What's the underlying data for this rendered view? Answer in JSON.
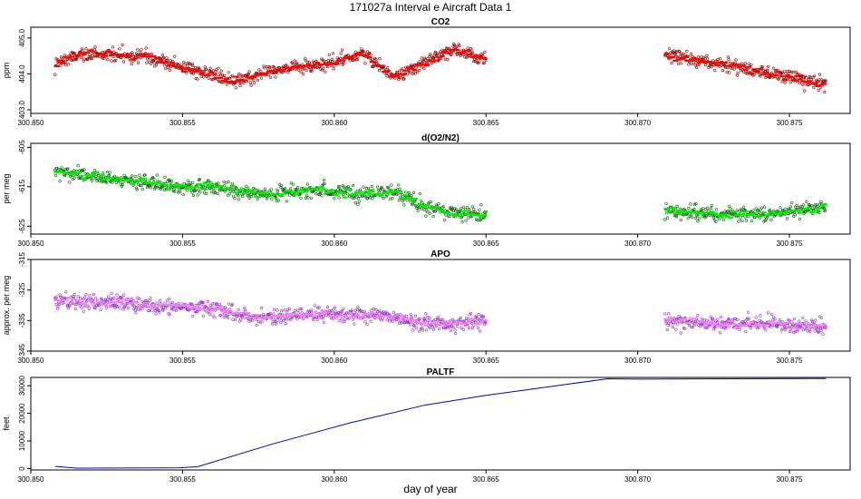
{
  "title": "171027a   Interval e Aircraft Data 1",
  "xlabel": "day of year",
  "chart_data": [
    {
      "type": "scatter",
      "title": "CO2",
      "ylabel": "ppm",
      "xlim": [
        300.85,
        300.877
      ],
      "ylim": [
        402.9,
        405.3
      ],
      "xticks": [
        "300.850",
        "300.855",
        "300.860",
        "300.865",
        "300.870",
        "300.875"
      ],
      "yticks": [
        "403.0",
        "404.0",
        "405.0"
      ],
      "colors": {
        "points": "#8b0000",
        "averages": "#ff0000"
      },
      "segments": [
        {
          "x_start": 300.8508,
          "x_end": 300.865,
          "y": [
            404.3,
            404.6,
            404.5,
            404.5,
            404.2,
            404.0,
            403.8,
            404.1,
            404.2,
            404.3,
            404.6,
            403.9,
            404.3,
            404.7,
            404.4
          ]
        },
        {
          "x_start": 300.8709,
          "x_end": 300.8762,
          "y": [
            404.5,
            404.3,
            404.0,
            403.7
          ]
        }
      ]
    },
    {
      "type": "scatter",
      "title": "d(O2/N2)",
      "ylabel": "per meg",
      "xlim": [
        300.85,
        300.877
      ],
      "ylim": [
        -627,
        -604
      ],
      "xticks": [
        "300.850",
        "300.855",
        "300.860",
        "300.865",
        "300.870",
        "300.875"
      ],
      "yticks": [
        "-605",
        "-615",
        "-625"
      ],
      "colors": {
        "points": "#006400",
        "averages": "#00ee00"
      },
      "segments": [
        {
          "x_start": 300.8508,
          "x_end": 300.865,
          "y": [
            -611,
            -612,
            -613,
            -614,
            -615,
            -615,
            -616,
            -617,
            -616,
            -616,
            -617,
            -616,
            -620,
            -622,
            -622
          ]
        },
        {
          "x_start": 300.8709,
          "x_end": 300.8762,
          "y": [
            -621,
            -622,
            -622,
            -620
          ]
        }
      ]
    },
    {
      "type": "scatter",
      "title": "APO",
      "ylabel": "approx. per meg",
      "xlim": [
        300.85,
        300.877
      ],
      "ylim": [
        -345,
        -315
      ],
      "xticks": [
        "300.850",
        "300.855",
        "300.860",
        "300.865",
        "300.870",
        "300.875"
      ],
      "yticks": [
        "-315",
        "-325",
        "-335",
        "-345"
      ],
      "colors": {
        "points": "#9932cc",
        "averages": "#ee82ee"
      },
      "segments": [
        {
          "x_start": 300.8508,
          "x_end": 300.865,
          "y": [
            -328,
            -329,
            -329,
            -330,
            -330,
            -331,
            -333,
            -334,
            -333,
            -333,
            -333,
            -334,
            -336,
            -336,
            -335
          ]
        },
        {
          "x_start": 300.8709,
          "x_end": 300.8762,
          "y": [
            -335,
            -336,
            -336,
            -337
          ]
        }
      ]
    },
    {
      "type": "line",
      "title": "PALTF",
      "ylabel": "feet",
      "xlim": [
        300.85,
        300.877
      ],
      "ylim": [
        -500,
        33000
      ],
      "xticks": [
        "300.850",
        "300.855",
        "300.860",
        "300.865",
        "300.870",
        "300.875"
      ],
      "yticks": [
        "0",
        "10000",
        "20000",
        "30000"
      ],
      "colors": {
        "line": "#0000cd"
      },
      "x": [
        300.8508,
        300.8515,
        300.8549,
        300.8555,
        300.858,
        300.8605,
        300.863,
        300.865,
        300.867,
        300.869,
        300.87,
        300.8762
      ],
      "y": [
        800,
        150,
        300,
        700,
        9000,
        16500,
        23000,
        26500,
        29500,
        32500,
        32400,
        32600
      ]
    }
  ]
}
